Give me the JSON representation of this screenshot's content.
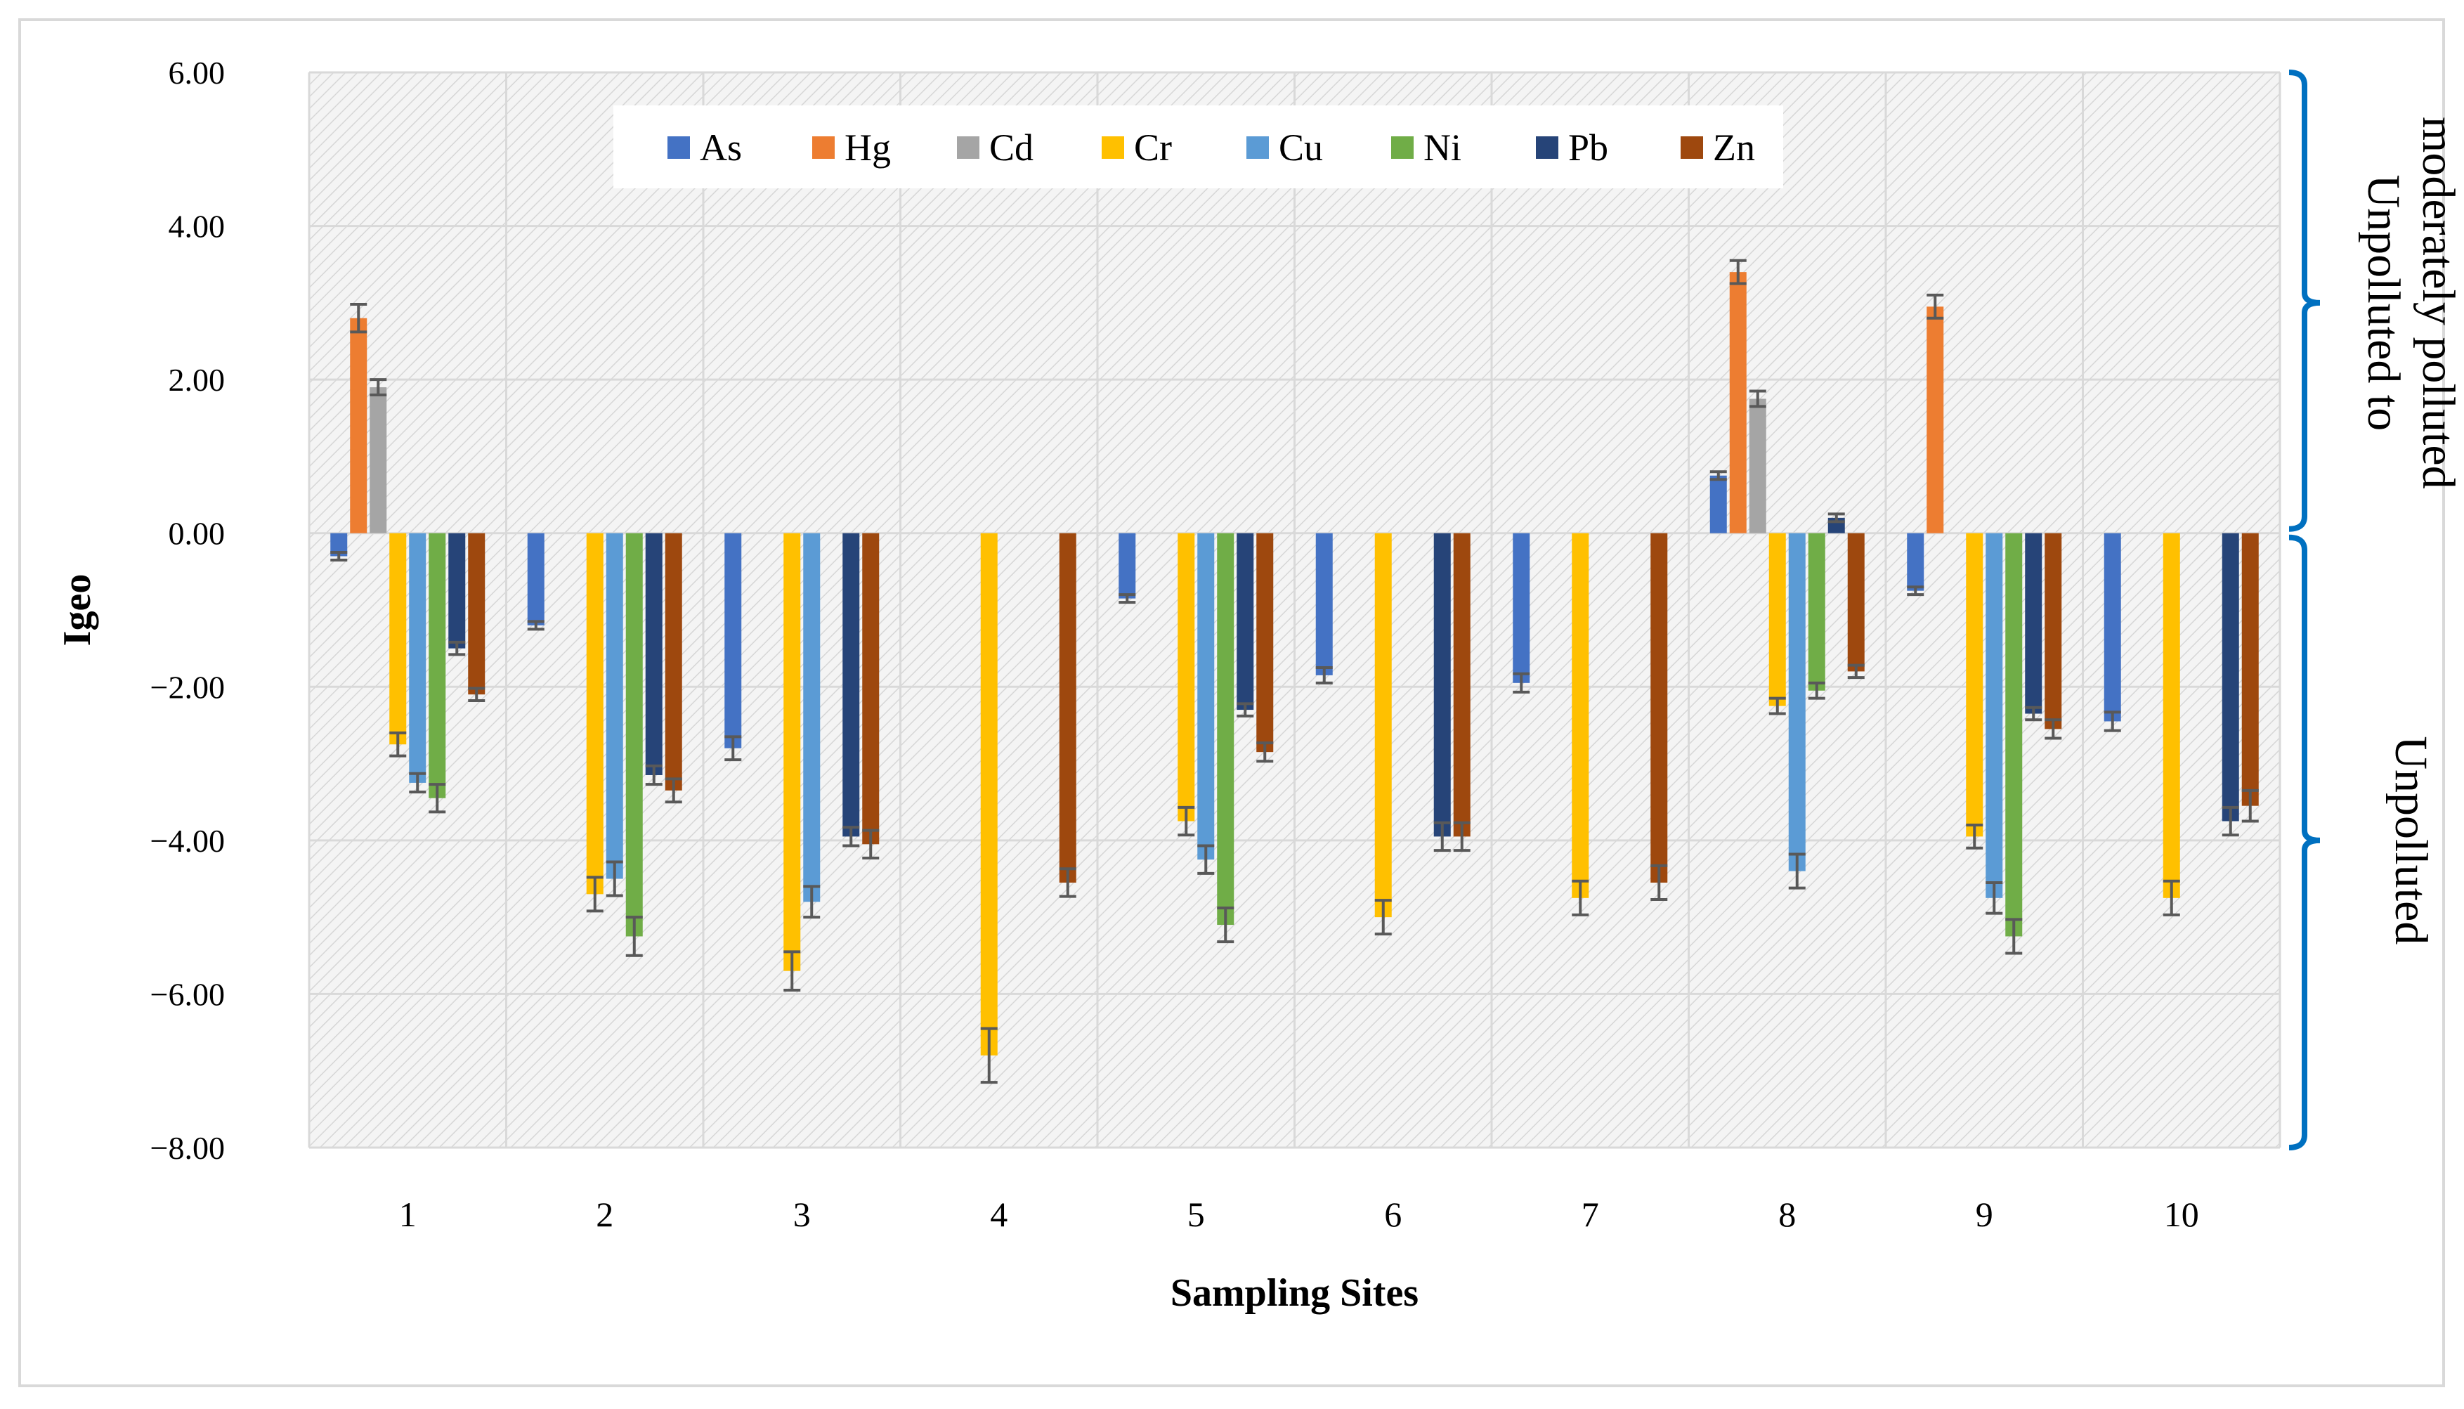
{
  "chart_data": {
    "type": "bar",
    "xlabel": "Sampling Sites",
    "ylabel": "Igeo",
    "ylim": [
      -8,
      6
    ],
    "yticks": [
      6,
      4,
      2,
      0,
      -2,
      -4,
      -6,
      -8
    ],
    "ytick_labels": [
      "6.00",
      "4.00",
      "2.00",
      "0.00",
      "−2.00",
      "−4.00",
      "−6.00",
      "−8.00"
    ],
    "grid": true,
    "legend_position": "top-center",
    "categories": [
      "1",
      "2",
      "3",
      "4",
      "5",
      "6",
      "7",
      "8",
      "9",
      "10"
    ],
    "series": [
      {
        "name": "As",
        "color": "#4472C4",
        "values": [
          -0.3,
          -1.2,
          -2.8,
          null,
          -0.85,
          -1.85,
          -1.95,
          0.75,
          -0.75,
          -2.45
        ],
        "errors": [
          0.05,
          0.05,
          0.15,
          null,
          0.05,
          0.1,
          0.12,
          0.05,
          0.05,
          0.12
        ]
      },
      {
        "name": "Hg",
        "color": "#ED7D31",
        "values": [
          2.8,
          null,
          null,
          null,
          null,
          null,
          null,
          3.4,
          2.95,
          null
        ],
        "errors": [
          0.18,
          null,
          null,
          null,
          null,
          null,
          null,
          0.15,
          0.15,
          null
        ]
      },
      {
        "name": "Cd",
        "color": "#A5A5A5",
        "values": [
          1.9,
          null,
          null,
          null,
          null,
          null,
          null,
          1.75,
          null,
          null
        ],
        "errors": [
          0.1,
          null,
          null,
          null,
          null,
          null,
          null,
          0.1,
          null,
          null
        ]
      },
      {
        "name": "Cr",
        "color": "#FFC000",
        "values": [
          -2.75,
          -4.7,
          -5.7,
          -6.8,
          -3.75,
          -5.0,
          -4.75,
          -2.25,
          -3.95,
          -4.75
        ],
        "errors": [
          0.15,
          0.22,
          0.25,
          0.35,
          0.18,
          0.22,
          0.22,
          0.1,
          0.15,
          0.22
        ]
      },
      {
        "name": "Cu",
        "color": "#5B9BD5",
        "values": [
          -3.25,
          -4.5,
          -4.8,
          null,
          -4.25,
          null,
          null,
          -4.4,
          -4.75,
          null
        ],
        "errors": [
          0.12,
          0.22,
          0.2,
          null,
          0.18,
          null,
          null,
          0.22,
          0.2,
          null
        ]
      },
      {
        "name": "Ni",
        "color": "#70AD47",
        "values": [
          -3.45,
          -5.25,
          null,
          null,
          -5.1,
          null,
          null,
          -2.05,
          -5.25,
          null
        ],
        "errors": [
          0.18,
          0.25,
          null,
          null,
          0.22,
          null,
          null,
          0.1,
          0.22,
          null
        ]
      },
      {
        "name": "Pb",
        "color": "#264478",
        "values": [
          -1.5,
          -3.15,
          -3.95,
          null,
          -2.3,
          -3.95,
          null,
          0.2,
          -2.35,
          -3.75
        ],
        "errors": [
          0.08,
          0.12,
          0.12,
          null,
          0.08,
          0.18,
          null,
          0.05,
          0.08,
          0.18
        ]
      },
      {
        "name": "Zn",
        "color": "#9E480E",
        "values": [
          -2.1,
          -3.35,
          -4.05,
          -4.55,
          -2.85,
          -3.95,
          -4.55,
          -1.8,
          -2.55,
          -3.55
        ],
        "errors": [
          0.08,
          0.15,
          0.18,
          0.18,
          0.12,
          0.18,
          0.22,
          0.08,
          0.12,
          0.2
        ]
      }
    ],
    "annotations": [
      {
        "text_lines": [
          "Unpolluted to",
          "moderately polluted"
        ],
        "range": [
          0,
          6
        ]
      },
      {
        "text_lines": [
          "Unpolluted"
        ],
        "range": [
          -8,
          0
        ]
      }
    ],
    "bracket_color": "#0070C0"
  }
}
